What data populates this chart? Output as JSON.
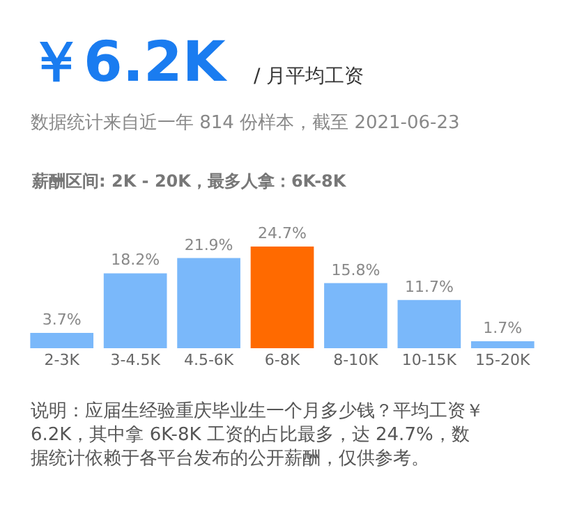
{
  "chart_data": {
    "type": "bar",
    "title": "￥6.2K",
    "subtitle": "/ 月平均工资",
    "annotations": [
      "数据统计来自近一年 814 份样本，截至 2021-06-23",
      "薪酬区间: 2K - 20K，最多人拿：6K-8K",
      "说明：应届生经验重庆毕业生一个月多少钱？平均工资￥6.2K，其中拿 6K-8K 工资的占比最多，达 24.7%，数据统计依赖于各平台发布的公开薪酬，仅供参考。"
    ],
    "categories": [
      "2-3K",
      "3-4.5K",
      "4.5-6K",
      "6-8K",
      "8-10K",
      "10-15K",
      "15-20K"
    ],
    "values": [
      3.7,
      18.2,
      21.9,
      24.7,
      15.8,
      11.7,
      1.7
    ],
    "colors": [
      "#7ab8fa",
      "#7ab8fa",
      "#7ab8fa",
      "#ff6a00",
      "#7ab8fa",
      "#7ab8fa",
      "#7ab8fa"
    ],
    "value_labels": [
      "3.7%",
      "18.2%",
      "21.9%",
      "24.7%",
      "15.8%",
      "11.7%",
      "1.7%"
    ],
    "legend": false
  }
}
